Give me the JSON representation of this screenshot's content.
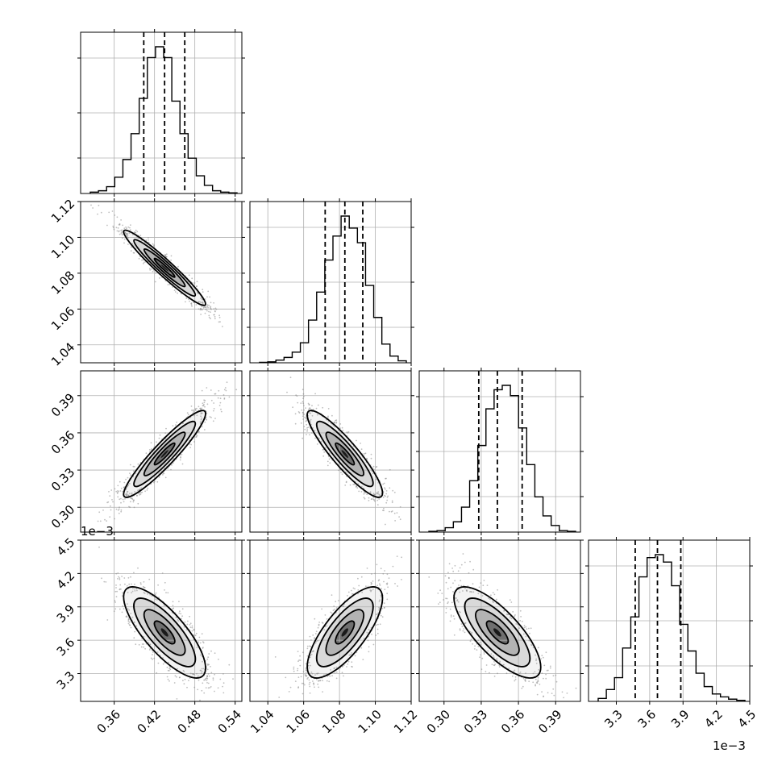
{
  "chart_data": {
    "type": "corner",
    "parameters": [
      {
        "range": [
          0.31,
          0.55
        ],
        "ticks": [
          0.36,
          0.42,
          0.48,
          0.54
        ],
        "tick_labels": [
          "0.36",
          "0.42",
          "0.48",
          "0.54"
        ],
        "quantiles": [
          0.404,
          0.435,
          0.465
        ],
        "hist_counts": [
          1,
          2,
          5,
          12,
          25,
          44,
          70,
          100,
          108,
          100,
          68,
          44,
          26,
          13,
          6,
          2,
          1,
          0.5
        ]
      },
      {
        "range": [
          1.03,
          1.12
        ],
        "ticks": [
          1.04,
          1.06,
          1.08,
          1.1,
          1.12
        ],
        "tick_labels": [
          "1.04",
          "1.06",
          "1.08",
          "1.10",
          "1.12"
        ],
        "quantiles": [
          1.072,
          1.083,
          1.093
        ],
        "hist_counts": [
          0.3,
          0.7,
          2,
          4,
          8,
          15,
          32,
          53,
          77,
          95,
          110,
          101,
          90,
          58,
          34,
          14,
          5,
          1.5
        ]
      },
      {
        "range": [
          0.28,
          0.41
        ],
        "ticks": [
          0.3,
          0.33,
          0.36,
          0.39
        ],
        "tick_labels": [
          "0.30",
          "0.33",
          "0.36",
          "0.39"
        ],
        "quantiles": [
          0.328,
          0.343,
          0.363
        ],
        "hist_counts": [
          0.5,
          1,
          3,
          7,
          17,
          35,
          59,
          84,
          97,
          100,
          93,
          71,
          46,
          24,
          11,
          4.5,
          1,
          0.5
        ]
      },
      {
        "range": [
          3.05,
          4.5
        ],
        "ticks": [
          3.3,
          3.6,
          3.9,
          4.2,
          4.5
        ],
        "tick_labels": [
          "3.3",
          "3.6",
          "3.9",
          "4.2",
          "4.5"
        ],
        "quantiles": [
          3.47,
          3.67,
          3.88
        ],
        "hist_counts": [
          2,
          8,
          16,
          36,
          57,
          84,
          97,
          99,
          94,
          78,
          52,
          34,
          19,
          10,
          5,
          3,
          1.5,
          0.7
        ]
      }
    ],
    "correlations": [
      [
        1,
        -0.96,
        0.93,
        -0.78
      ],
      [
        -0.96,
        1,
        -0.9,
        0.75
      ],
      [
        0.93,
        -0.9,
        1,
        -0.76
      ],
      [
        -0.78,
        0.75,
        -0.76,
        1
      ]
    ],
    "offset_label": "1e−3",
    "grid": true
  }
}
